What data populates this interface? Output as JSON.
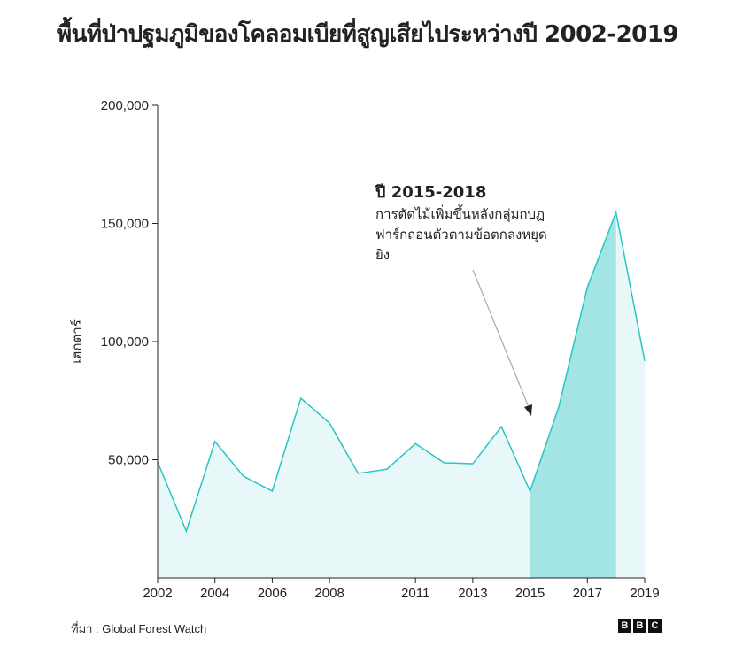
{
  "title": "พื้นที่ป่าปฐมภูมิของโคลอมเบียที่สูญเสียไประหว่างปี 2002-2019",
  "source": "ที่มา : Global Forest Watch",
  "logo_text": [
    "B",
    "B",
    "C"
  ],
  "annotation": {
    "heading": "ปี 2015-2018",
    "lines": [
      "การตัดไม้เพิ่มขึ้นหลังกลุ่มกบฏ",
      "ฟาร์กถอนตัวตามข้อตกลงหยุด",
      "ยิง"
    ]
  },
  "colors": {
    "line": "#2ac4c4",
    "fill": "#e8f8f8",
    "highlight": "#a3e4e4"
  },
  "chart_data": {
    "type": "area",
    "title": "พื้นที่ป่าปฐมภูมิของโคลอมเบียที่สูญเสียไประหว่างปี 2002-2019",
    "ylabel": "เฮกตาร์",
    "xlabel": "",
    "x": [
      2002,
      2003,
      2004,
      2005,
      2006,
      2007,
      2008,
      2009,
      2010,
      2011,
      2012,
      2013,
      2014,
      2015,
      2016,
      2017,
      2018,
      2019
    ],
    "values": [
      49000,
      19800,
      57700,
      43000,
      36700,
      76000,
      65500,
      44200,
      46000,
      56800,
      48700,
      48300,
      64000,
      36700,
      72300,
      123000,
      154700,
      91800
    ],
    "xlim": [
      2002,
      2019
    ],
    "ylim": [
      0,
      200000
    ],
    "x_ticks": [
      "2002",
      "2004",
      "2006",
      "2008",
      "2011",
      "2013",
      "2015",
      "2017",
      "2019"
    ],
    "y_ticks": [
      "50,000",
      "100,000",
      "150,000",
      "200,000"
    ],
    "highlight_range": [
      2015,
      2018
    ],
    "grid": false
  }
}
